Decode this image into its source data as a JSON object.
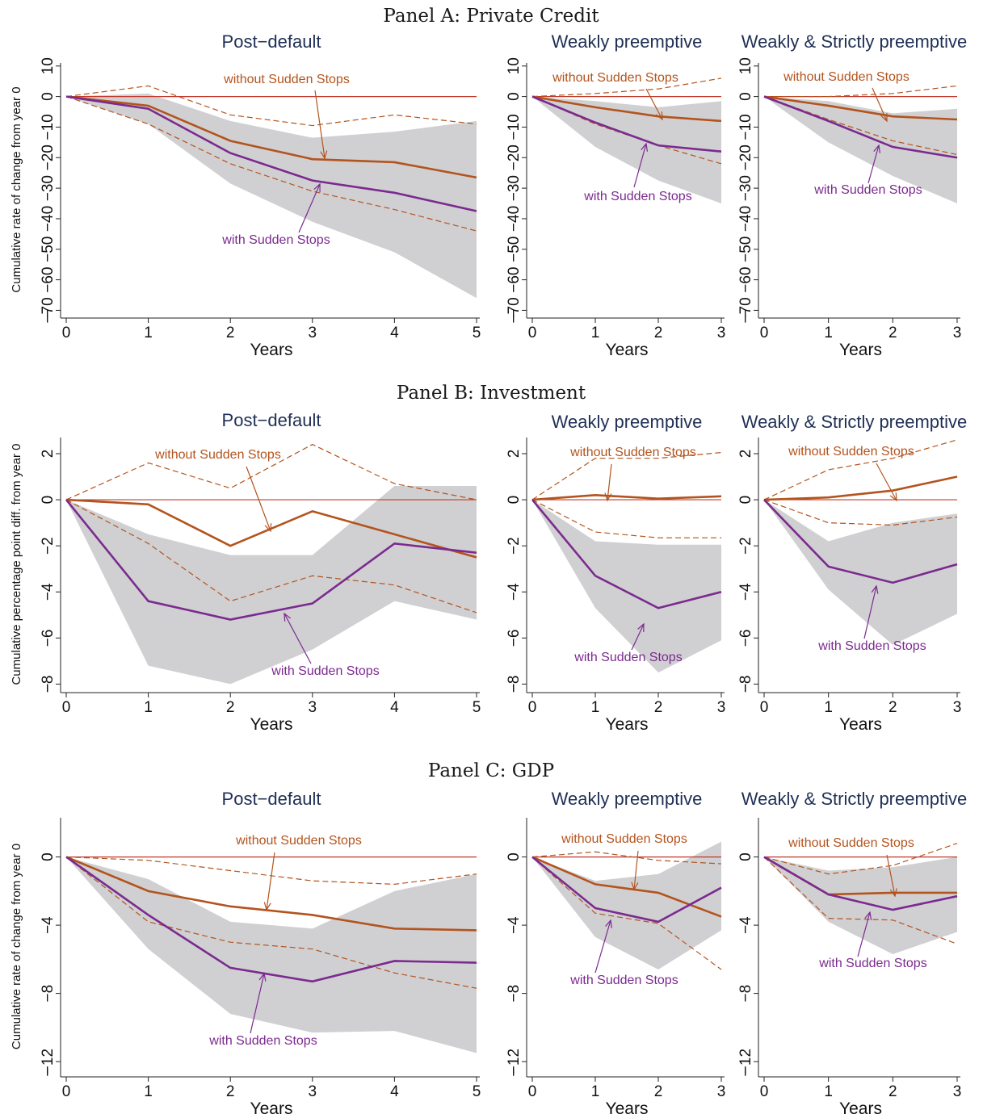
{
  "figure": {
    "panels": [
      {
        "title": "Panel A: Private Credit",
        "ylabel": "Cumulative rate of change from year 0",
        "yticks": [
          10,
          0,
          -10,
          -20,
          -30,
          -40,
          -50,
          -60,
          -70
        ],
        "ytick_labels": [
          "10",
          "0",
          "−10",
          "−20",
          "−30",
          "−40",
          "−50",
          "−60",
          "−70"
        ]
      },
      {
        "title": "Panel B: Investment",
        "ylabel": "Cumulative percentage point diff. from year 0",
        "yticks": [
          2,
          0,
          -2,
          -4,
          -6,
          -8
        ],
        "ytick_labels": [
          "2",
          "0",
          "−2",
          "−4",
          "−6",
          "−8"
        ]
      },
      {
        "title": "Panel C: GDP",
        "ylabel": "Cumulative rate of change from year 0",
        "yticks": [
          0,
          -4,
          -8,
          -12
        ],
        "ytick_labels": [
          "0",
          "−4",
          "−8",
          "−12"
        ]
      }
    ],
    "xlabel": "Years",
    "y_axis_end_mark": "−",
    "annotation_without": "without Sudden Stops",
    "annotation_with": "with Sudden Stops"
  },
  "colors": {
    "without": "#b3541e",
    "with": "#7b2a8f",
    "band": "#d0d0d2",
    "zero_line": "#c0392b",
    "title": "#1f2f55"
  },
  "chart_data": [
    {
      "panel": "Panel A: Private Credit",
      "title": "Post−default",
      "type": "line",
      "xticks": [
        0,
        1,
        2,
        3,
        4,
        5
      ],
      "ylim": [
        -72,
        11
      ],
      "series": [
        {
          "name": "without Sudden Stops",
          "x": [
            0,
            1,
            2,
            3,
            4,
            5
          ],
          "y": [
            0,
            -3,
            -14.5,
            -20.5,
            -21.5,
            -26.5
          ],
          "lower": [
            0,
            -9,
            -22,
            -31,
            -37,
            -44
          ],
          "upper": [
            0,
            3.5,
            -6,
            -9.5,
            -6,
            -9
          ]
        },
        {
          "name": "with Sudden Stops",
          "x": [
            0,
            1,
            2,
            3,
            4,
            5
          ],
          "y": [
            0,
            -4,
            -18.5,
            -27.5,
            -31.5,
            -37.5
          ],
          "lower": [
            0,
            -9,
            -28.5,
            -41,
            -51,
            -66
          ],
          "upper": [
            0,
            1,
            -8,
            -13.5,
            -11.5,
            -8
          ]
        }
      ]
    },
    {
      "panel": "Panel A: Private Credit",
      "title": "Weakly preemptive",
      "type": "line",
      "xticks": [
        0,
        1,
        2,
        3
      ],
      "ylim": [
        -72,
        11
      ],
      "series": [
        {
          "name": "without Sudden Stops",
          "x": [
            0,
            1,
            2,
            3
          ],
          "y": [
            0,
            -3.5,
            -6.5,
            -8
          ],
          "lower": [
            0,
            -9,
            -16,
            -22
          ],
          "upper": [
            0,
            1,
            2.5,
            6
          ]
        },
        {
          "name": "with Sudden Stops",
          "x": [
            0,
            1,
            2,
            3
          ],
          "y": [
            0,
            -8.5,
            -16,
            -18
          ],
          "lower": [
            0,
            -16.5,
            -27.5,
            -35
          ],
          "upper": [
            0,
            -1.5,
            -3.5,
            -1.5
          ]
        }
      ]
    },
    {
      "panel": "Panel A: Private Credit",
      "title": "Weakly & Strictly preemptive",
      "type": "line",
      "xticks": [
        0,
        1,
        2,
        3
      ],
      "ylim": [
        -72,
        11
      ],
      "series": [
        {
          "name": "without Sudden Stops",
          "x": [
            0,
            1,
            2,
            3
          ],
          "y": [
            0,
            -3,
            -6.5,
            -7.5
          ],
          "lower": [
            0,
            -7.5,
            -14.5,
            -19
          ],
          "upper": [
            0,
            0,
            1,
            3.5
          ]
        },
        {
          "name": "with Sudden Stops",
          "x": [
            0,
            1,
            2,
            3
          ],
          "y": [
            0,
            -8,
            -16.5,
            -20
          ],
          "lower": [
            0,
            -15,
            -26,
            -35
          ],
          "upper": [
            0,
            -1.5,
            -5.5,
            -4
          ]
        }
      ]
    },
    {
      "panel": "Panel B: Investment",
      "title": "Post−default",
      "type": "line",
      "xticks": [
        0,
        1,
        2,
        3,
        4,
        5
      ],
      "ylim": [
        -8.3,
        2.7
      ],
      "series": [
        {
          "name": "without Sudden Stops",
          "x": [
            0,
            1,
            2,
            3,
            4,
            5
          ],
          "y": [
            0,
            -0.2,
            -2,
            -0.5,
            -1.5,
            -2.5
          ],
          "lower": [
            0,
            -1.9,
            -4.4,
            -3.3,
            -3.7,
            -4.9
          ],
          "upper": [
            0,
            1.6,
            0.5,
            2.4,
            0.7,
            0
          ]
        },
        {
          "name": "with Sudden Stops",
          "x": [
            0,
            1,
            2,
            3,
            4,
            5
          ],
          "y": [
            0,
            -4.4,
            -5.2,
            -4.5,
            -1.9,
            -2.3
          ],
          "lower": [
            0,
            -7.2,
            -8,
            -6.5,
            -4.4,
            -5.2
          ],
          "upper": [
            0,
            -1.5,
            -2.4,
            -2.4,
            0.6,
            0.6
          ]
        }
      ]
    },
    {
      "panel": "Panel B: Investment",
      "title": "Weakly preemptive",
      "type": "line",
      "xticks": [
        0,
        1,
        2,
        3
      ],
      "ylim": [
        -8.3,
        2.7
      ],
      "series": [
        {
          "name": "without Sudden Stops",
          "x": [
            0,
            1,
            2,
            3
          ],
          "y": [
            0,
            0.2,
            0.05,
            0.15
          ],
          "lower": [
            0,
            -1.4,
            -1.65,
            -1.65
          ],
          "upper": [
            0,
            1.8,
            1.8,
            2.05
          ]
        },
        {
          "name": "with Sudden Stops",
          "x": [
            0,
            1,
            2,
            3
          ],
          "y": [
            0,
            -3.3,
            -4.7,
            -4
          ],
          "lower": [
            0,
            -4.7,
            -7.5,
            -6.1
          ],
          "upper": [
            0,
            -1.8,
            -1.95,
            -1.95
          ]
        }
      ]
    },
    {
      "panel": "Panel B: Investment",
      "title": "Weakly & Strictly preemptive",
      "type": "line",
      "xticks": [
        0,
        1,
        2,
        3
      ],
      "ylim": [
        -8.3,
        2.7
      ],
      "series": [
        {
          "name": "without Sudden Stops",
          "x": [
            0,
            1,
            2,
            3
          ],
          "y": [
            0,
            0.1,
            0.4,
            1
          ],
          "lower": [
            0,
            -1,
            -1.1,
            -0.75
          ],
          "upper": [
            0,
            1.3,
            1.8,
            2.6
          ]
        },
        {
          "name": "with Sudden Stops",
          "x": [
            0,
            1,
            2,
            3
          ],
          "y": [
            0,
            -2.9,
            -3.6,
            -2.8
          ],
          "lower": [
            0,
            -3.9,
            -6.3,
            -4.95
          ],
          "upper": [
            0,
            -1.8,
            -1,
            -0.6
          ]
        }
      ]
    },
    {
      "panel": "Panel C: GDP",
      "title": "Post−default",
      "type": "line",
      "xticks": [
        0,
        1,
        2,
        3,
        4,
        5
      ],
      "ylim": [
        -12.8,
        2.3
      ],
      "series": [
        {
          "name": "without Sudden Stops",
          "x": [
            0,
            1,
            2,
            3,
            4,
            5
          ],
          "y": [
            0,
            -2,
            -2.9,
            -3.4,
            -4.2,
            -4.3
          ],
          "lower": [
            0,
            -3.8,
            -5,
            -5.4,
            -6.8,
            -7.7
          ],
          "upper": [
            0,
            -0.2,
            -0.8,
            -1.4,
            -1.6,
            -1
          ]
        },
        {
          "name": "with Sudden Stops",
          "x": [
            0,
            1,
            2,
            3,
            4,
            5
          ],
          "y": [
            0,
            -3.4,
            -6.5,
            -7.3,
            -6.1,
            -6.2
          ],
          "lower": [
            0,
            -5.4,
            -9.2,
            -10.3,
            -10.2,
            -11.5
          ],
          "upper": [
            0,
            -1.3,
            -3.8,
            -4.2,
            -2,
            -1
          ]
        }
      ]
    },
    {
      "panel": "Panel C: GDP",
      "title": "Weakly preemptive",
      "type": "line",
      "xticks": [
        0,
        1,
        2,
        3
      ],
      "ylim": [
        -12.8,
        2.3
      ],
      "series": [
        {
          "name": "without Sudden Stops",
          "x": [
            0,
            1,
            2,
            3
          ],
          "y": [
            0,
            -1.6,
            -2.1,
            -3.5
          ],
          "lower": [
            0,
            -3.3,
            -3.9,
            -6.6
          ],
          "upper": [
            0,
            0.3,
            -0.2,
            -0.4
          ]
        },
        {
          "name": "with Sudden Stops",
          "x": [
            0,
            1,
            2,
            3
          ],
          "y": [
            0,
            -3,
            -3.8,
            -1.8
          ],
          "lower": [
            0,
            -4.7,
            -6.6,
            -4.3
          ],
          "upper": [
            0,
            -1.4,
            -1,
            0.9
          ]
        }
      ]
    },
    {
      "panel": "Panel C: GDP",
      "title": "Weakly & Strictly preemptive",
      "type": "line",
      "xticks": [
        0,
        1,
        2,
        3
      ],
      "ylim": [
        -12.8,
        2.3
      ],
      "series": [
        {
          "name": "without Sudden Stops",
          "x": [
            0,
            1,
            2,
            3
          ],
          "y": [
            0,
            -2.2,
            -2.1,
            -2.1
          ],
          "lower": [
            0,
            -3.6,
            -3.7,
            -5.1
          ],
          "upper": [
            0,
            -1,
            -0.5,
            0.8
          ]
        },
        {
          "name": "with Sudden Stops",
          "x": [
            0,
            1,
            2,
            3
          ],
          "y": [
            0,
            -2.2,
            -3.1,
            -2.3
          ],
          "lower": [
            0,
            -3.8,
            -5.7,
            -4.4
          ],
          "upper": [
            0,
            -0.8,
            -0.6,
            0
          ]
        }
      ]
    }
  ]
}
